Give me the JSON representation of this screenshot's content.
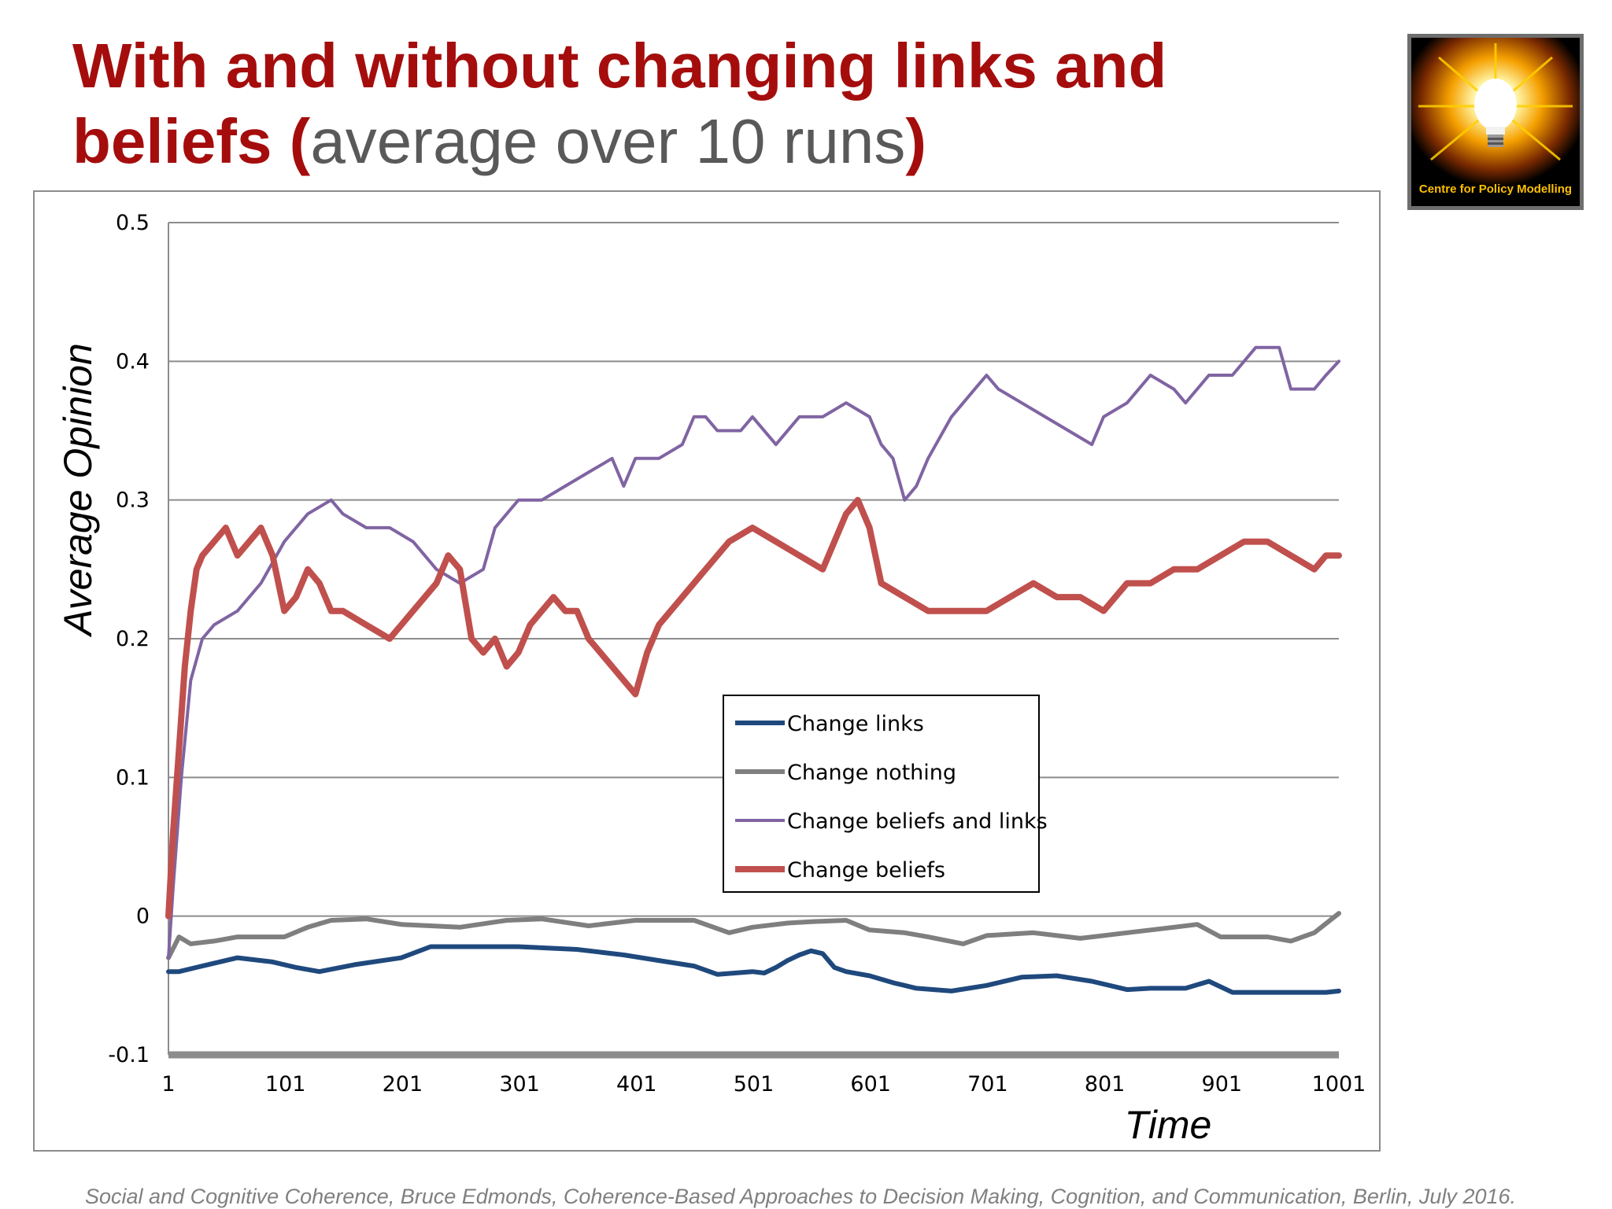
{
  "slide": {
    "title_line1": "With and without changing links and",
    "title_line2_bold": "beliefs",
    "paren_open": "(",
    "title_sub": "average over 10 runs",
    "paren_close": ")",
    "footer": "Social and Cognitive Coherence,  Bruce Edmonds, Coherence-Based Approaches to Decision Making, Cognition, and Communication, Berlin, July 2016.",
    "logo_text": "Centre for Policy Modelling",
    "logo_icon": "lightbulb-icon",
    "title_color": "#a50d0d"
  },
  "chart_data": {
    "type": "line",
    "title": "",
    "xlabel": "Time",
    "ylabel": "Average Opinion",
    "xlim": [
      1,
      1001
    ],
    "ylim": [
      -0.1,
      0.5
    ],
    "x_ticks": [
      "1",
      "101",
      "201",
      "301",
      "401",
      "501",
      "601",
      "701",
      "801",
      "901",
      "1001"
    ],
    "y_ticks": [
      "-0.1",
      "0",
      "0.1",
      "0.2",
      "0.3",
      "0.4",
      "0.5"
    ],
    "y_tick_values": [
      -0.1,
      0,
      0.1,
      0.2,
      0.3,
      0.4,
      0.5
    ],
    "grid": true,
    "legend_position": "center",
    "series": [
      {
        "name": "Change links",
        "color": "#1f497d",
        "x": [
          1,
          10,
          30,
          60,
          90,
          110,
          130,
          160,
          200,
          225,
          250,
          300,
          350,
          390,
          420,
          450,
          470,
          500,
          510,
          520,
          530,
          540,
          550,
          560,
          570,
          580,
          600,
          620,
          630,
          640,
          670,
          700,
          730,
          760,
          790,
          820,
          840,
          870,
          890,
          910,
          930,
          960,
          990,
          1001
        ],
        "y": [
          -0.04,
          -0.04,
          -0.036,
          -0.03,
          -0.033,
          -0.037,
          -0.04,
          -0.035,
          -0.03,
          -0.022,
          -0.022,
          -0.022,
          -0.024,
          -0.028,
          -0.032,
          -0.036,
          -0.042,
          -0.04,
          -0.041,
          -0.037,
          -0.032,
          -0.028,
          -0.025,
          -0.027,
          -0.037,
          -0.04,
          -0.043,
          -0.048,
          -0.05,
          -0.052,
          -0.054,
          -0.05,
          -0.044,
          -0.043,
          -0.047,
          -0.053,
          -0.052,
          -0.052,
          -0.047,
          -0.055,
          -0.055,
          -0.055,
          -0.055,
          -0.054
        ]
      },
      {
        "name": "Change nothing",
        "color": "#7f7f7f",
        "x": [
          1,
          10,
          20,
          40,
          60,
          100,
          120,
          140,
          170,
          200,
          250,
          290,
          320,
          360,
          400,
          450,
          480,
          500,
          530,
          550,
          580,
          600,
          630,
          650,
          680,
          700,
          740,
          780,
          820,
          860,
          880,
          900,
          940,
          960,
          980,
          1001
        ],
        "y": [
          -0.03,
          -0.015,
          -0.02,
          -0.018,
          -0.015,
          -0.015,
          -0.008,
          -0.003,
          -0.002,
          -0.006,
          -0.008,
          -0.003,
          -0.002,
          -0.007,
          -0.003,
          -0.003,
          -0.012,
          -0.008,
          -0.005,
          -0.004,
          -0.003,
          -0.01,
          -0.012,
          -0.015,
          -0.02,
          -0.014,
          -0.012,
          -0.016,
          -0.012,
          -0.008,
          -0.006,
          -0.015,
          -0.015,
          -0.018,
          -0.012,
          0.002
        ]
      },
      {
        "name": "Change beliefs and links",
        "color": "#8064a2",
        "x": [
          1,
          5,
          12,
          20,
          30,
          40,
          60,
          80,
          100,
          120,
          140,
          150,
          170,
          190,
          210,
          230,
          250,
          270,
          280,
          300,
          320,
          340,
          360,
          380,
          390,
          400,
          420,
          440,
          450,
          460,
          470,
          490,
          500,
          520,
          540,
          560,
          580,
          600,
          610,
          620,
          630,
          640,
          650,
          670,
          690,
          700,
          710,
          730,
          750,
          770,
          790,
          800,
          820,
          840,
          860,
          870,
          890,
          910,
          920,
          930,
          950,
          960,
          980,
          990,
          1001
        ],
        "y": [
          -0.03,
          0.02,
          0.1,
          0.17,
          0.2,
          0.21,
          0.22,
          0.24,
          0.27,
          0.29,
          0.3,
          0.29,
          0.28,
          0.28,
          0.27,
          0.25,
          0.24,
          0.25,
          0.28,
          0.3,
          0.3,
          0.31,
          0.32,
          0.33,
          0.31,
          0.33,
          0.33,
          0.34,
          0.36,
          0.36,
          0.35,
          0.35,
          0.36,
          0.34,
          0.36,
          0.36,
          0.37,
          0.36,
          0.34,
          0.33,
          0.3,
          0.31,
          0.33,
          0.36,
          0.38,
          0.39,
          0.38,
          0.37,
          0.36,
          0.35,
          0.34,
          0.36,
          0.37,
          0.39,
          0.38,
          0.37,
          0.39,
          0.39,
          0.4,
          0.41,
          0.41,
          0.38,
          0.38,
          0.39,
          0.4
        ]
      },
      {
        "name": "Change beliefs",
        "color": "#c0504d",
        "x": [
          1,
          5,
          10,
          15,
          20,
          25,
          30,
          40,
          50,
          60,
          70,
          80,
          90,
          100,
          110,
          120,
          130,
          140,
          150,
          170,
          190,
          200,
          210,
          230,
          240,
          250,
          260,
          270,
          280,
          290,
          300,
          310,
          320,
          330,
          340,
          350,
          360,
          370,
          380,
          390,
          400,
          410,
          420,
          440,
          460,
          480,
          500,
          520,
          540,
          560,
          570,
          580,
          590,
          600,
          610,
          630,
          650,
          670,
          700,
          720,
          740,
          760,
          780,
          800,
          820,
          840,
          860,
          880,
          900,
          920,
          940,
          960,
          980,
          990,
          1001
        ],
        "y": [
          0.0,
          0.06,
          0.12,
          0.18,
          0.22,
          0.25,
          0.26,
          0.27,
          0.28,
          0.26,
          0.27,
          0.28,
          0.26,
          0.22,
          0.23,
          0.25,
          0.24,
          0.22,
          0.22,
          0.21,
          0.2,
          0.21,
          0.22,
          0.24,
          0.26,
          0.25,
          0.2,
          0.19,
          0.2,
          0.18,
          0.19,
          0.21,
          0.22,
          0.23,
          0.22,
          0.22,
          0.2,
          0.19,
          0.18,
          0.17,
          0.16,
          0.19,
          0.21,
          0.23,
          0.25,
          0.27,
          0.28,
          0.27,
          0.26,
          0.25,
          0.27,
          0.29,
          0.3,
          0.28,
          0.24,
          0.23,
          0.22,
          0.22,
          0.22,
          0.23,
          0.24,
          0.23,
          0.23,
          0.22,
          0.24,
          0.24,
          0.25,
          0.25,
          0.26,
          0.27,
          0.27,
          0.26,
          0.25,
          0.26,
          0.26
        ]
      }
    ]
  }
}
